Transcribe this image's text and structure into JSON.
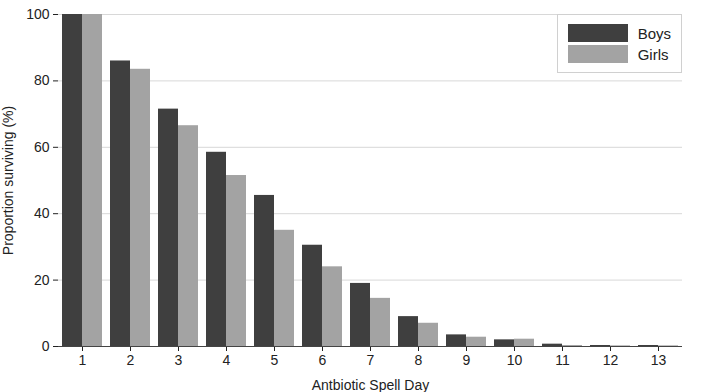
{
  "chart_data": {
    "type": "bar",
    "x_label": "Antbiotic Spell Day",
    "y_label": "Proportion surviving (%)",
    "categories": [
      1,
      2,
      3,
      4,
      5,
      6,
      7,
      8,
      9,
      10,
      11,
      12,
      13
    ],
    "series": [
      {
        "name": "Boys",
        "color": "#3f3f3f",
        "values": [
          100,
          86,
          71.5,
          58.5,
          45.5,
          30.5,
          19,
          9,
          3.5,
          2,
          0.7,
          0.3,
          0.3
        ]
      },
      {
        "name": "Girls",
        "color": "#a3a3a3",
        "values": [
          100,
          83.5,
          66.5,
          51.5,
          35,
          24,
          14.5,
          7,
          2.8,
          2.2,
          0.3,
          0.2,
          0.2
        ]
      }
    ],
    "ylim": [
      0,
      100
    ],
    "yticks": [
      0,
      20,
      40,
      60,
      80,
      100
    ],
    "grid": true,
    "legend": "top-right"
  }
}
